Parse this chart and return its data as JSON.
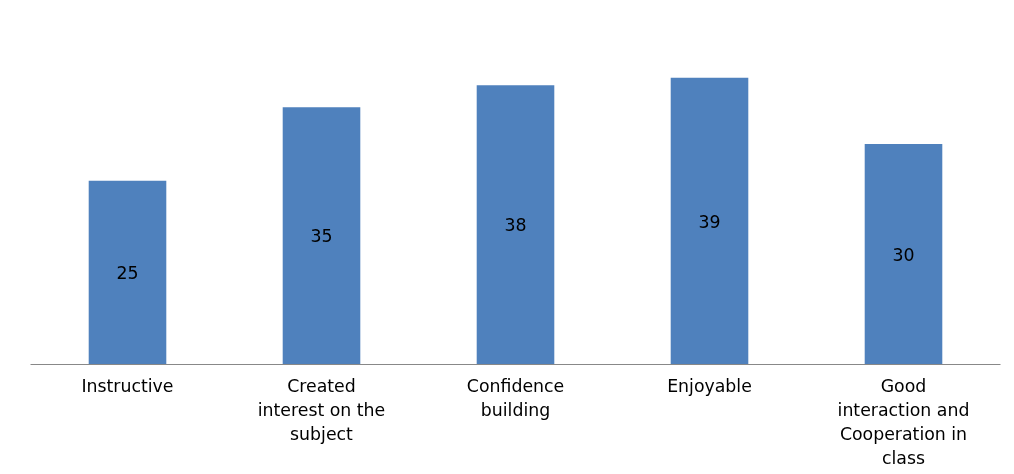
{
  "chart_data": {
    "type": "bar",
    "categories": [
      "Instructive",
      "Created interest on the subject",
      "Confidence building",
      "Enjoyable",
      "Good interaction and Cooperation in class"
    ],
    "values": [
      25,
      35,
      38,
      39,
      30
    ],
    "color": "#4f81bd",
    "data_labels": true
  }
}
